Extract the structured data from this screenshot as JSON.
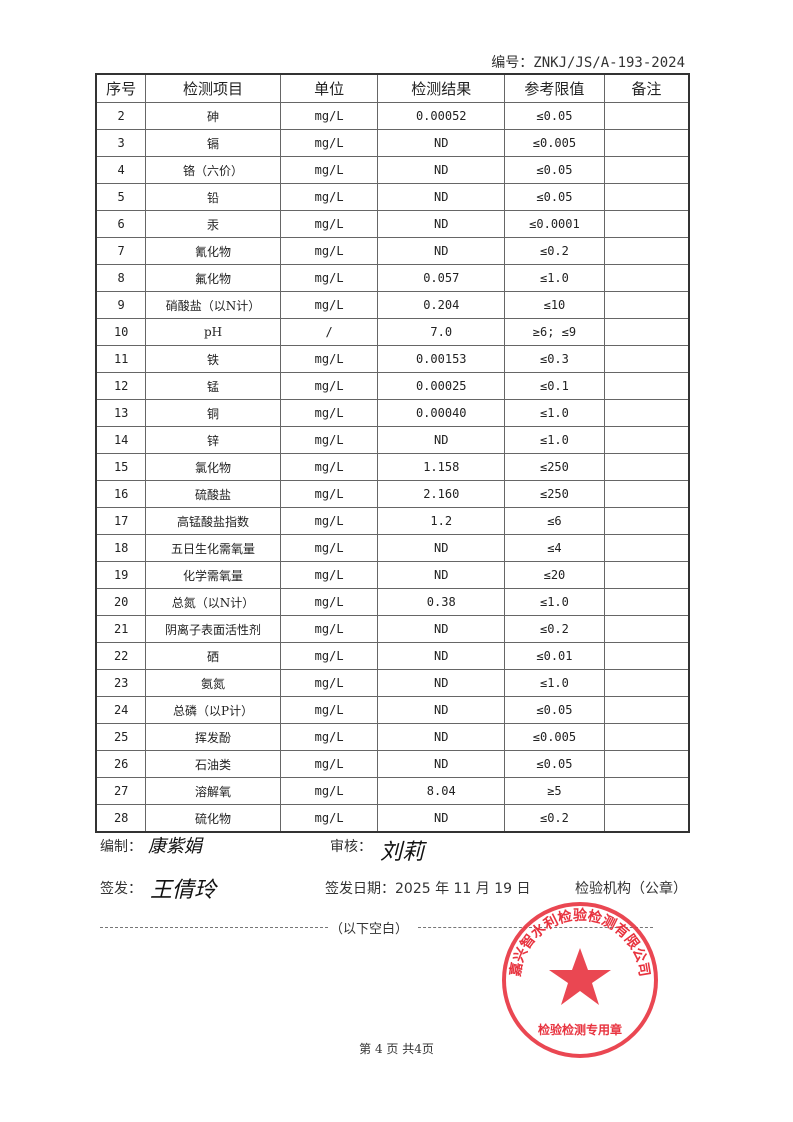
{
  "doc_number_label": "编号：",
  "doc_number": "ZNKJ/JS/A-193-2024",
  "headers": [
    "序号",
    "检测项目",
    "单位",
    "检测结果",
    "参考限值",
    "备注"
  ],
  "rows": [
    [
      "2",
      "砷",
      "mg/L",
      "0.00052",
      "≤0.05",
      ""
    ],
    [
      "3",
      "镉",
      "mg/L",
      "ND",
      "≤0.005",
      ""
    ],
    [
      "4",
      "铬（六价）",
      "mg/L",
      "ND",
      "≤0.05",
      ""
    ],
    [
      "5",
      "铅",
      "mg/L",
      "ND",
      "≤0.05",
      ""
    ],
    [
      "6",
      "汞",
      "mg/L",
      "ND",
      "≤0.0001",
      ""
    ],
    [
      "7",
      "氰化物",
      "mg/L",
      "ND",
      "≤0.2",
      ""
    ],
    [
      "8",
      "氟化物",
      "mg/L",
      "0.057",
      "≤1.0",
      ""
    ],
    [
      "9",
      "硝酸盐（以N计）",
      "mg/L",
      "0.204",
      "≤10",
      ""
    ],
    [
      "10",
      "pH",
      "/",
      "7.0",
      "≥6; ≤9",
      ""
    ],
    [
      "11",
      "铁",
      "mg/L",
      "0.00153",
      "≤0.3",
      ""
    ],
    [
      "12",
      "锰",
      "mg/L",
      "0.00025",
      "≤0.1",
      ""
    ],
    [
      "13",
      "铜",
      "mg/L",
      "0.00040",
      "≤1.0",
      ""
    ],
    [
      "14",
      "锌",
      "mg/L",
      "ND",
      "≤1.0",
      ""
    ],
    [
      "15",
      "氯化物",
      "mg/L",
      "1.158",
      "≤250",
      ""
    ],
    [
      "16",
      "硫酸盐",
      "mg/L",
      "2.160",
      "≤250",
      ""
    ],
    [
      "17",
      "高锰酸盐指数",
      "mg/L",
      "1.2",
      "≤6",
      ""
    ],
    [
      "18",
      "五日生化需氧量",
      "mg/L",
      "ND",
      "≤4",
      ""
    ],
    [
      "19",
      "化学需氧量",
      "mg/L",
      "ND",
      "≤20",
      ""
    ],
    [
      "20",
      "总氮（以N计）",
      "mg/L",
      "0.38",
      "≤1.0",
      ""
    ],
    [
      "21",
      "阴离子表面活性剂",
      "mg/L",
      "ND",
      "≤0.2",
      ""
    ],
    [
      "22",
      "硒",
      "mg/L",
      "ND",
      "≤0.01",
      ""
    ],
    [
      "23",
      "氨氮",
      "mg/L",
      "ND",
      "≤1.0",
      ""
    ],
    [
      "24",
      "总磷（以P计）",
      "mg/L",
      "ND",
      "≤0.05",
      ""
    ],
    [
      "25",
      "挥发酚",
      "mg/L",
      "ND",
      "≤0.005",
      ""
    ],
    [
      "26",
      "石油类",
      "mg/L",
      "ND",
      "≤0.05",
      ""
    ],
    [
      "27",
      "溶解氧",
      "mg/L",
      "8.04",
      "≥5",
      ""
    ],
    [
      "28",
      "硫化物",
      "mg/L",
      "ND",
      "≤0.2",
      ""
    ]
  ],
  "footer": {
    "compiled_label": "编制：",
    "compiled_sig": "康紫娟",
    "reviewed_label": "审核：",
    "reviewed_sig": "刘莉",
    "issued_label": "签发：",
    "issued_sig": "王倩玲",
    "issue_date": "签发日期：2025 年 11 月 19 日",
    "institution": "检验机构（公章）",
    "blank_note": "（以下空白）",
    "page": "第 4 页 共4页"
  },
  "stamp": {
    "text_top": "嘉兴智水利检验检测有限公司",
    "text_bottom": "检验检测专用章",
    "color": "#e8333f"
  }
}
